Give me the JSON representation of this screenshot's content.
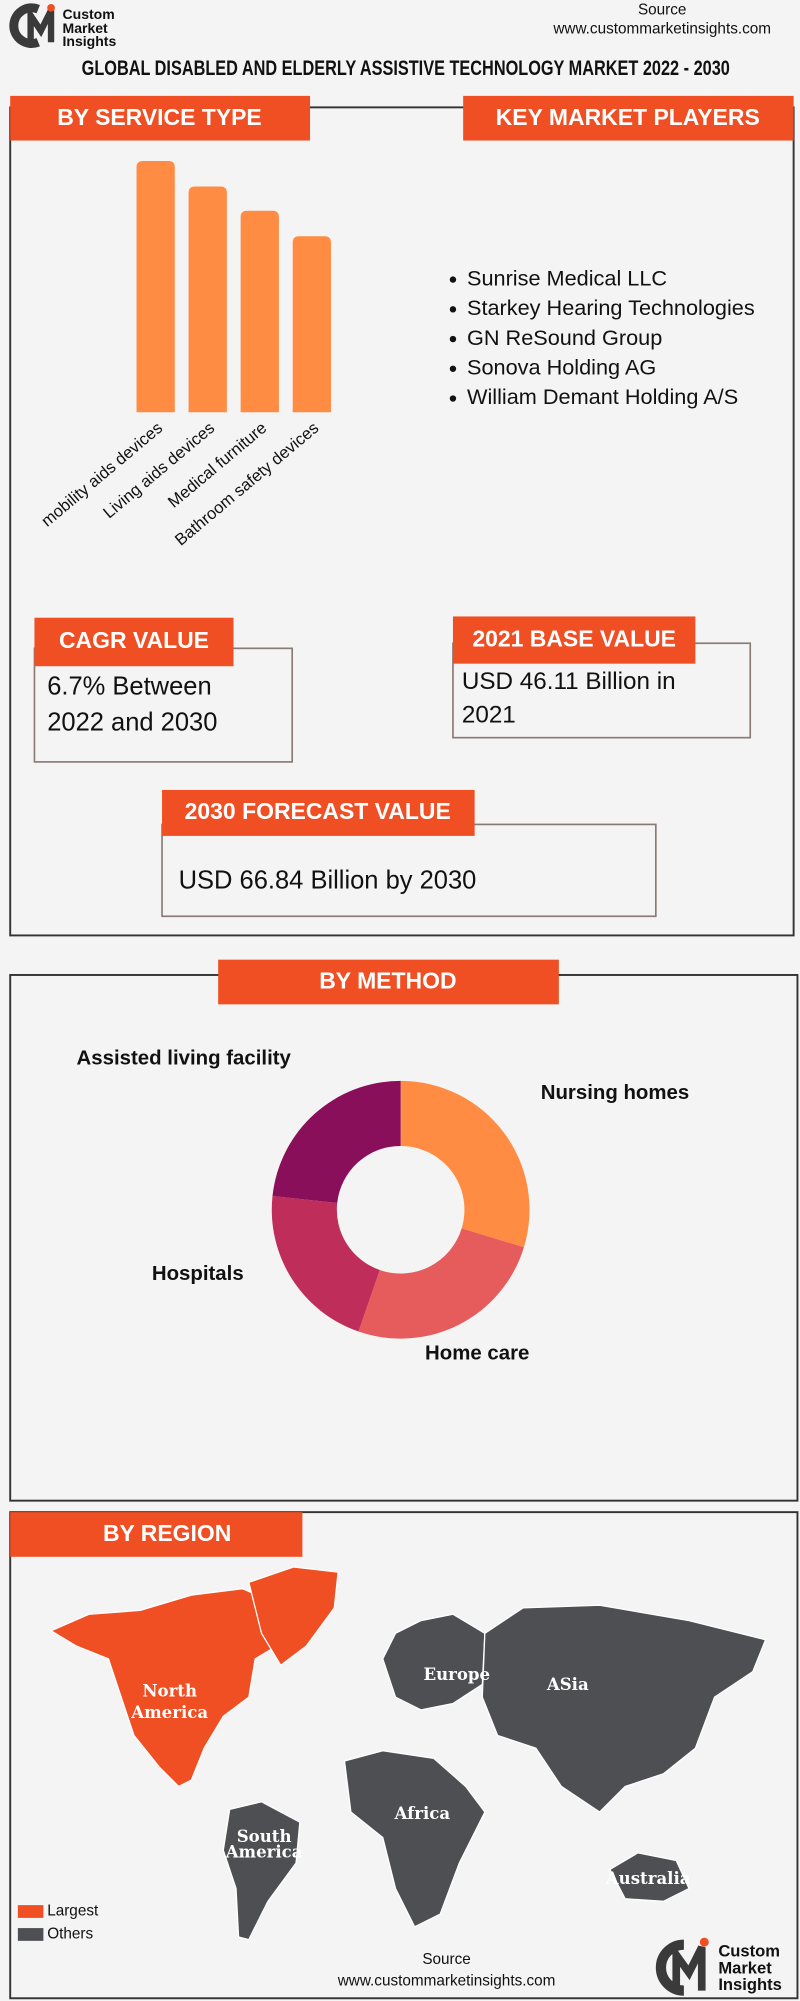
{
  "header": {
    "logo": [
      "Custom",
      "Market",
      "Insights"
    ],
    "source_label": "Source",
    "source_url": "www.custommarketinsights.com",
    "title": "GLOBAL DISABLED AND ELDERLY ASSISTIVE TECHNOLOGY MARKET 2022 - 2030"
  },
  "chart_data": [
    {
      "type": "bar",
      "title": "BY SERVICE TYPE",
      "categories": [
        "mobility aids devices",
        "Living aids devices",
        "Medical furniture",
        "Bathroom safety devices"
      ],
      "values": [
        3.94,
        3.54,
        3.16,
        2.76
      ],
      "color": "#ff8c42",
      "ylim": [
        0,
        4
      ]
    },
    {
      "type": "pie",
      "title": "BY METHOD",
      "donut": true,
      "categories": [
        "Nursing homes",
        "Home care",
        "Hospitals",
        "Assisted living facility"
      ],
      "values": [
        29.7,
        25.6,
        21.4,
        23.3
      ],
      "colors": [
        "#ff8c42",
        "#e65c5c",
        "#bf2e5a",
        "#8a0f5a"
      ]
    }
  ],
  "key_players": {
    "title": "KEY MARKET PLAYERS",
    "items": [
      "Sunrise Medical LLC",
      "Starkey Hearing Technologies",
      "GN ReSound Group",
      "Sonova Holding AG",
      "William Demant Holding A/S"
    ]
  },
  "cagr": {
    "title": "CAGR VALUE",
    "lines": [
      "6.7% Between",
      "2022 and 2030"
    ]
  },
  "base_value": {
    "title": "2021 BASE VALUE",
    "lines": [
      "USD 46.11 Billion in",
      "2021"
    ]
  },
  "forecast": {
    "title": "2030 FORECAST  VALUE",
    "lines": [
      "USD 66.84 Billion by 2030"
    ]
  },
  "region": {
    "title": "BY REGION",
    "labels": [
      [
        "North",
        "America"
      ],
      [
        "Europe"
      ],
      [
        "ASia"
      ],
      [
        "Africa"
      ],
      [
        "South",
        "America"
      ],
      [
        "Australia"
      ]
    ],
    "legend": [
      {
        "name": "Largest",
        "color": "#f04e23"
      },
      {
        "name": "Others",
        "color": "#4d4f53"
      }
    ]
  },
  "footer": {
    "source_label": "Source",
    "source_url": "www.custommarketinsights.com",
    "logo": [
      "Custom",
      "Market",
      "Insights"
    ]
  }
}
